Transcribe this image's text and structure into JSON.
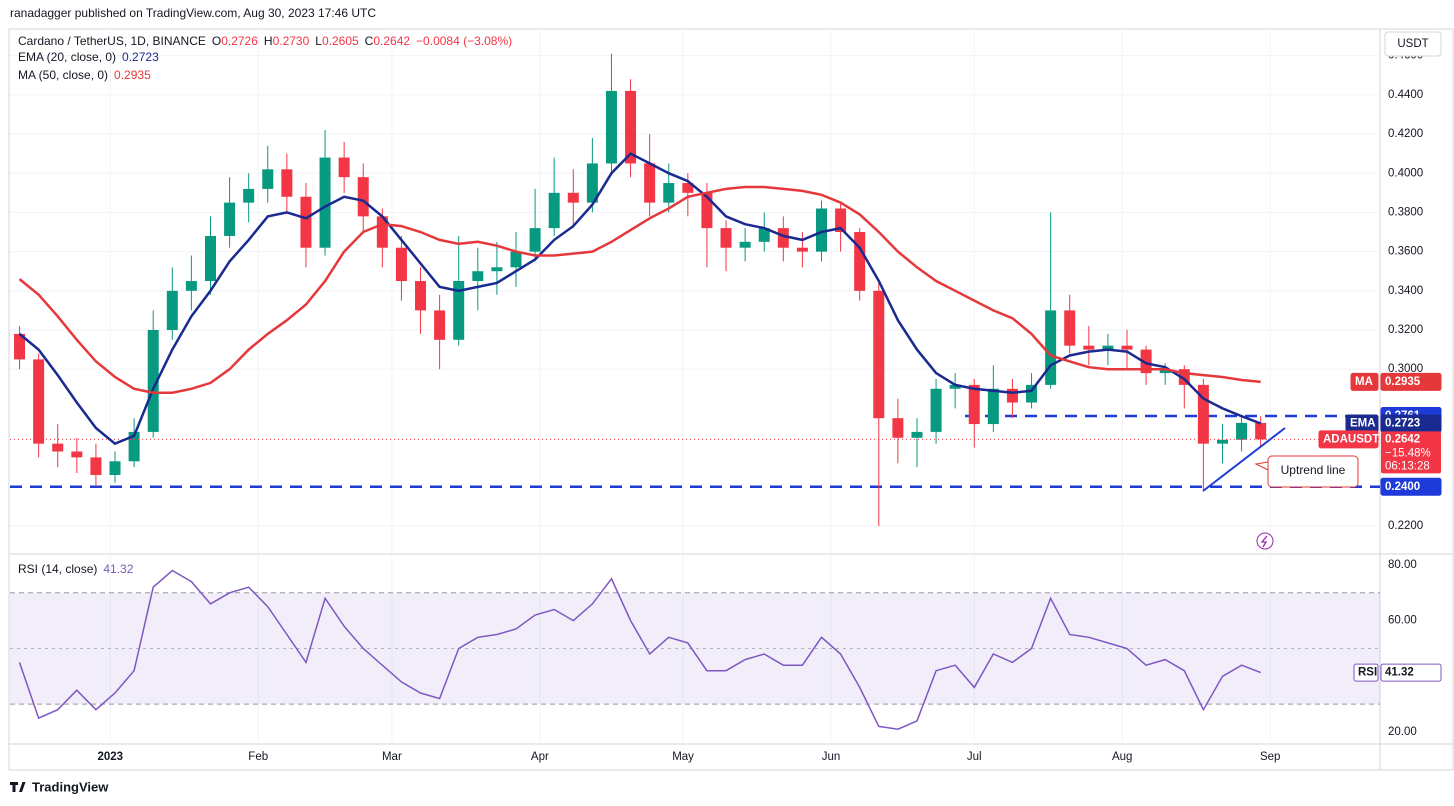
{
  "header": {
    "publisher": "ranadagger published on TradingView.com, Aug 30, 2023 17:46 UTC",
    "currency": "USDT"
  },
  "footer": {
    "brand": "TradingView"
  },
  "chart_data": [
    {
      "type": "candlestick",
      "title": "Cardano / TetherUS, 1D, BINANCE",
      "quote": [
        {
          "key": "O",
          "label": "0.2726"
        },
        {
          "key": "H",
          "label": "0.2730"
        },
        {
          "key": "L",
          "label": "0.2605"
        },
        {
          "key": "C",
          "label": "0.2642"
        }
      ],
      "change": "−0.0084 (−3.08%)",
      "x": [
        -19,
        -15,
        -11,
        -7,
        -3,
        1,
        5,
        9,
        13,
        17,
        21,
        25,
        29,
        33,
        37,
        41,
        45,
        49,
        53,
        57,
        61,
        65,
        69,
        73,
        77,
        81,
        85,
        89,
        93,
        97,
        101,
        105,
        109,
        113,
        117,
        121,
        125,
        129,
        133,
        137,
        141,
        145,
        149,
        153,
        157,
        161,
        165,
        169,
        173,
        177,
        181,
        185,
        189,
        193,
        197,
        201,
        205,
        209,
        213,
        217,
        221,
        225,
        229,
        233,
        237,
        241
      ],
      "xlim": [
        -21,
        266
      ],
      "xticks": [
        {
          "value": 0,
          "label": "2023"
        },
        {
          "value": 31,
          "label": "Feb"
        },
        {
          "value": 59,
          "label": "Mar"
        },
        {
          "value": 90,
          "label": "Apr"
        },
        {
          "value": 120,
          "label": "May"
        },
        {
          "value": 151,
          "label": "Jun"
        },
        {
          "value": 181,
          "label": "Jul"
        },
        {
          "value": 212,
          "label": "Aug"
        },
        {
          "value": 243,
          "label": "Sep"
        }
      ],
      "ylim": [
        0.2062,
        0.4731
      ],
      "yticks": [
        {
          "value": 0.22,
          "label": "0.2200"
        },
        {
          "value": 0.3,
          "label": "0.3000"
        },
        {
          "value": 0.32,
          "label": "0.3200"
        },
        {
          "value": 0.34,
          "label": "0.3400"
        },
        {
          "value": 0.36,
          "label": "0.3600"
        },
        {
          "value": 0.38,
          "label": "0.3800"
        },
        {
          "value": 0.4,
          "label": "0.4000"
        },
        {
          "value": 0.42,
          "label": "0.4200"
        },
        {
          "value": 0.44,
          "label": "0.4400"
        },
        {
          "value": 0.46,
          "label": "0.4600"
        }
      ],
      "grid": true,
      "candles": {
        "name": "ADAUSDT",
        "up_color": "#089981",
        "down_color": "#f23645",
        "open": [
          0.318,
          0.305,
          0.262,
          0.258,
          0.255,
          0.246,
          0.253,
          0.268,
          0.32,
          0.34,
          0.345,
          0.368,
          0.385,
          0.392,
          0.402,
          0.388,
          0.362,
          0.408,
          0.398,
          0.378,
          0.362,
          0.345,
          0.33,
          0.315,
          0.345,
          0.35,
          0.352,
          0.36,
          0.372,
          0.39,
          0.385,
          0.405,
          0.442,
          0.405,
          0.385,
          0.395,
          0.39,
          0.372,
          0.362,
          0.365,
          0.372,
          0.362,
          0.36,
          0.382,
          0.37,
          0.34,
          0.275,
          0.265,
          0.268,
          0.29,
          0.292,
          0.272,
          0.29,
          0.283,
          0.292,
          0.33,
          0.312,
          0.31,
          0.312,
          0.31,
          0.298,
          0.3,
          0.292,
          0.262,
          0.264,
          0.2726
        ],
        "high": [
          0.322,
          0.308,
          0.272,
          0.265,
          0.262,
          0.258,
          0.275,
          0.33,
          0.352,
          0.358,
          0.378,
          0.398,
          0.4,
          0.414,
          0.41,
          0.395,
          0.422,
          0.416,
          0.405,
          0.382,
          0.368,
          0.352,
          0.338,
          0.368,
          0.362,
          0.365,
          0.37,
          0.392,
          0.408,
          0.402,
          0.418,
          0.461,
          0.448,
          0.42,
          0.405,
          0.4,
          0.395,
          0.376,
          0.372,
          0.38,
          0.378,
          0.37,
          0.386,
          0.385,
          0.372,
          0.345,
          0.285,
          0.275,
          0.295,
          0.298,
          0.295,
          0.302,
          0.295,
          0.298,
          0.38,
          0.338,
          0.322,
          0.318,
          0.32,
          0.312,
          0.303,
          0.302,
          0.295,
          0.272,
          0.276,
          0.276
        ],
        "low": [
          0.3,
          0.255,
          0.25,
          0.247,
          0.24,
          0.242,
          0.25,
          0.265,
          0.315,
          0.33,
          0.338,
          0.362,
          0.375,
          0.385,
          0.38,
          0.352,
          0.358,
          0.39,
          0.37,
          0.352,
          0.335,
          0.318,
          0.3,
          0.312,
          0.33,
          0.338,
          0.342,
          0.355,
          0.368,
          0.372,
          0.38,
          0.4,
          0.398,
          0.378,
          0.38,
          0.378,
          0.352,
          0.35,
          0.355,
          0.36,
          0.355,
          0.352,
          0.355,
          0.36,
          0.335,
          0.22,
          0.252,
          0.25,
          0.262,
          0.28,
          0.26,
          0.268,
          0.275,
          0.28,
          0.29,
          0.308,
          0.302,
          0.302,
          0.3,
          0.292,
          0.292,
          0.28,
          0.238,
          0.252,
          0.258,
          0.2605
        ],
        "close": [
          0.305,
          0.262,
          0.258,
          0.255,
          0.246,
          0.253,
          0.268,
          0.32,
          0.34,
          0.345,
          0.368,
          0.385,
          0.392,
          0.402,
          0.388,
          0.362,
          0.408,
          0.398,
          0.378,
          0.362,
          0.345,
          0.33,
          0.315,
          0.345,
          0.35,
          0.352,
          0.36,
          0.372,
          0.39,
          0.385,
          0.405,
          0.442,
          0.405,
          0.385,
          0.395,
          0.39,
          0.372,
          0.362,
          0.365,
          0.372,
          0.362,
          0.36,
          0.382,
          0.37,
          0.34,
          0.275,
          0.265,
          0.268,
          0.29,
          0.292,
          0.272,
          0.29,
          0.283,
          0.292,
          0.33,
          0.312,
          0.31,
          0.312,
          0.31,
          0.298,
          0.3,
          0.292,
          0.262,
          0.264,
          0.2726,
          0.2642
        ]
      },
      "series": [
        {
          "name": "EMA",
          "legend": "EMA (20, close, 0)",
          "color": "#1a2a8f",
          "values": [
            0.318,
            0.31,
            0.297,
            0.283,
            0.27,
            0.262,
            0.266,
            0.29,
            0.31,
            0.327,
            0.34,
            0.355,
            0.366,
            0.378,
            0.38,
            0.377,
            0.383,
            0.388,
            0.386,
            0.378,
            0.366,
            0.354,
            0.342,
            0.34,
            0.342,
            0.344,
            0.35,
            0.356,
            0.366,
            0.373,
            0.384,
            0.4,
            0.41,
            0.405,
            0.4,
            0.396,
            0.388,
            0.378,
            0.374,
            0.372,
            0.368,
            0.366,
            0.37,
            0.372,
            0.362,
            0.345,
            0.325,
            0.31,
            0.298,
            0.292,
            0.29,
            0.289,
            0.288,
            0.289,
            0.302,
            0.307,
            0.309,
            0.31,
            0.309,
            0.303,
            0.301,
            0.295,
            0.285,
            0.28,
            0.276,
            0.2723
          ]
        },
        {
          "name": "MA",
          "legend": "MA (50, close, 0)",
          "color": "#e5383b",
          "values": [
            0.346,
            0.338,
            0.327,
            0.315,
            0.304,
            0.296,
            0.29,
            0.288,
            0.288,
            0.29,
            0.293,
            0.3,
            0.31,
            0.318,
            0.325,
            0.333,
            0.345,
            0.36,
            0.37,
            0.374,
            0.373,
            0.37,
            0.366,
            0.364,
            0.365,
            0.363,
            0.36,
            0.358,
            0.358,
            0.359,
            0.36,
            0.365,
            0.371,
            0.377,
            0.382,
            0.388,
            0.39,
            0.392,
            0.393,
            0.393,
            0.392,
            0.391,
            0.389,
            0.385,
            0.379,
            0.37,
            0.36,
            0.352,
            0.345,
            0.34,
            0.335,
            0.33,
            0.326,
            0.318,
            0.307,
            0.304,
            0.301,
            0.3,
            0.3,
            0.3,
            0.3,
            0.298,
            0.297,
            0.296,
            0.2945,
            0.2935
          ]
        }
      ],
      "price_tag": {
        "change": "−15.48%",
        "countdown": "06:13:28"
      },
      "levels": [
        {
          "value": 0.2761,
          "label": "0.2761",
          "color": "#1e3ad9"
        },
        {
          "value": 0.24,
          "label": "0.2400",
          "color": "#1e3ad9"
        }
      ],
      "annotation": "Uptrend line"
    },
    {
      "type": "line",
      "title": "RSI (14, close)",
      "name": "RSI",
      "color": "#7e57c2",
      "values": [
        45,
        25,
        28,
        35,
        28,
        34,
        42,
        72,
        78,
        74,
        66,
        70,
        72,
        65,
        55,
        45,
        68,
        58,
        50,
        44,
        38,
        34,
        32,
        50,
        54,
        55,
        57,
        62,
        64,
        60,
        66,
        75,
        60,
        48,
        54,
        52,
        42,
        42,
        46,
        48,
        44,
        44,
        54,
        48,
        36,
        22,
        21,
        24,
        42,
        44,
        36,
        48,
        45,
        50,
        68,
        55,
        54,
        52,
        50,
        44,
        46,
        42,
        28,
        40,
        44,
        41.32
      ],
      "ylim": [
        16.05,
        83.2
      ],
      "yticks": [
        {
          "value": 80,
          "label": "80.00"
        },
        {
          "value": 60,
          "label": "60.00"
        },
        {
          "value": 20,
          "label": "20.00"
        }
      ],
      "band": [
        30,
        70
      ],
      "midline": 50
    }
  ]
}
